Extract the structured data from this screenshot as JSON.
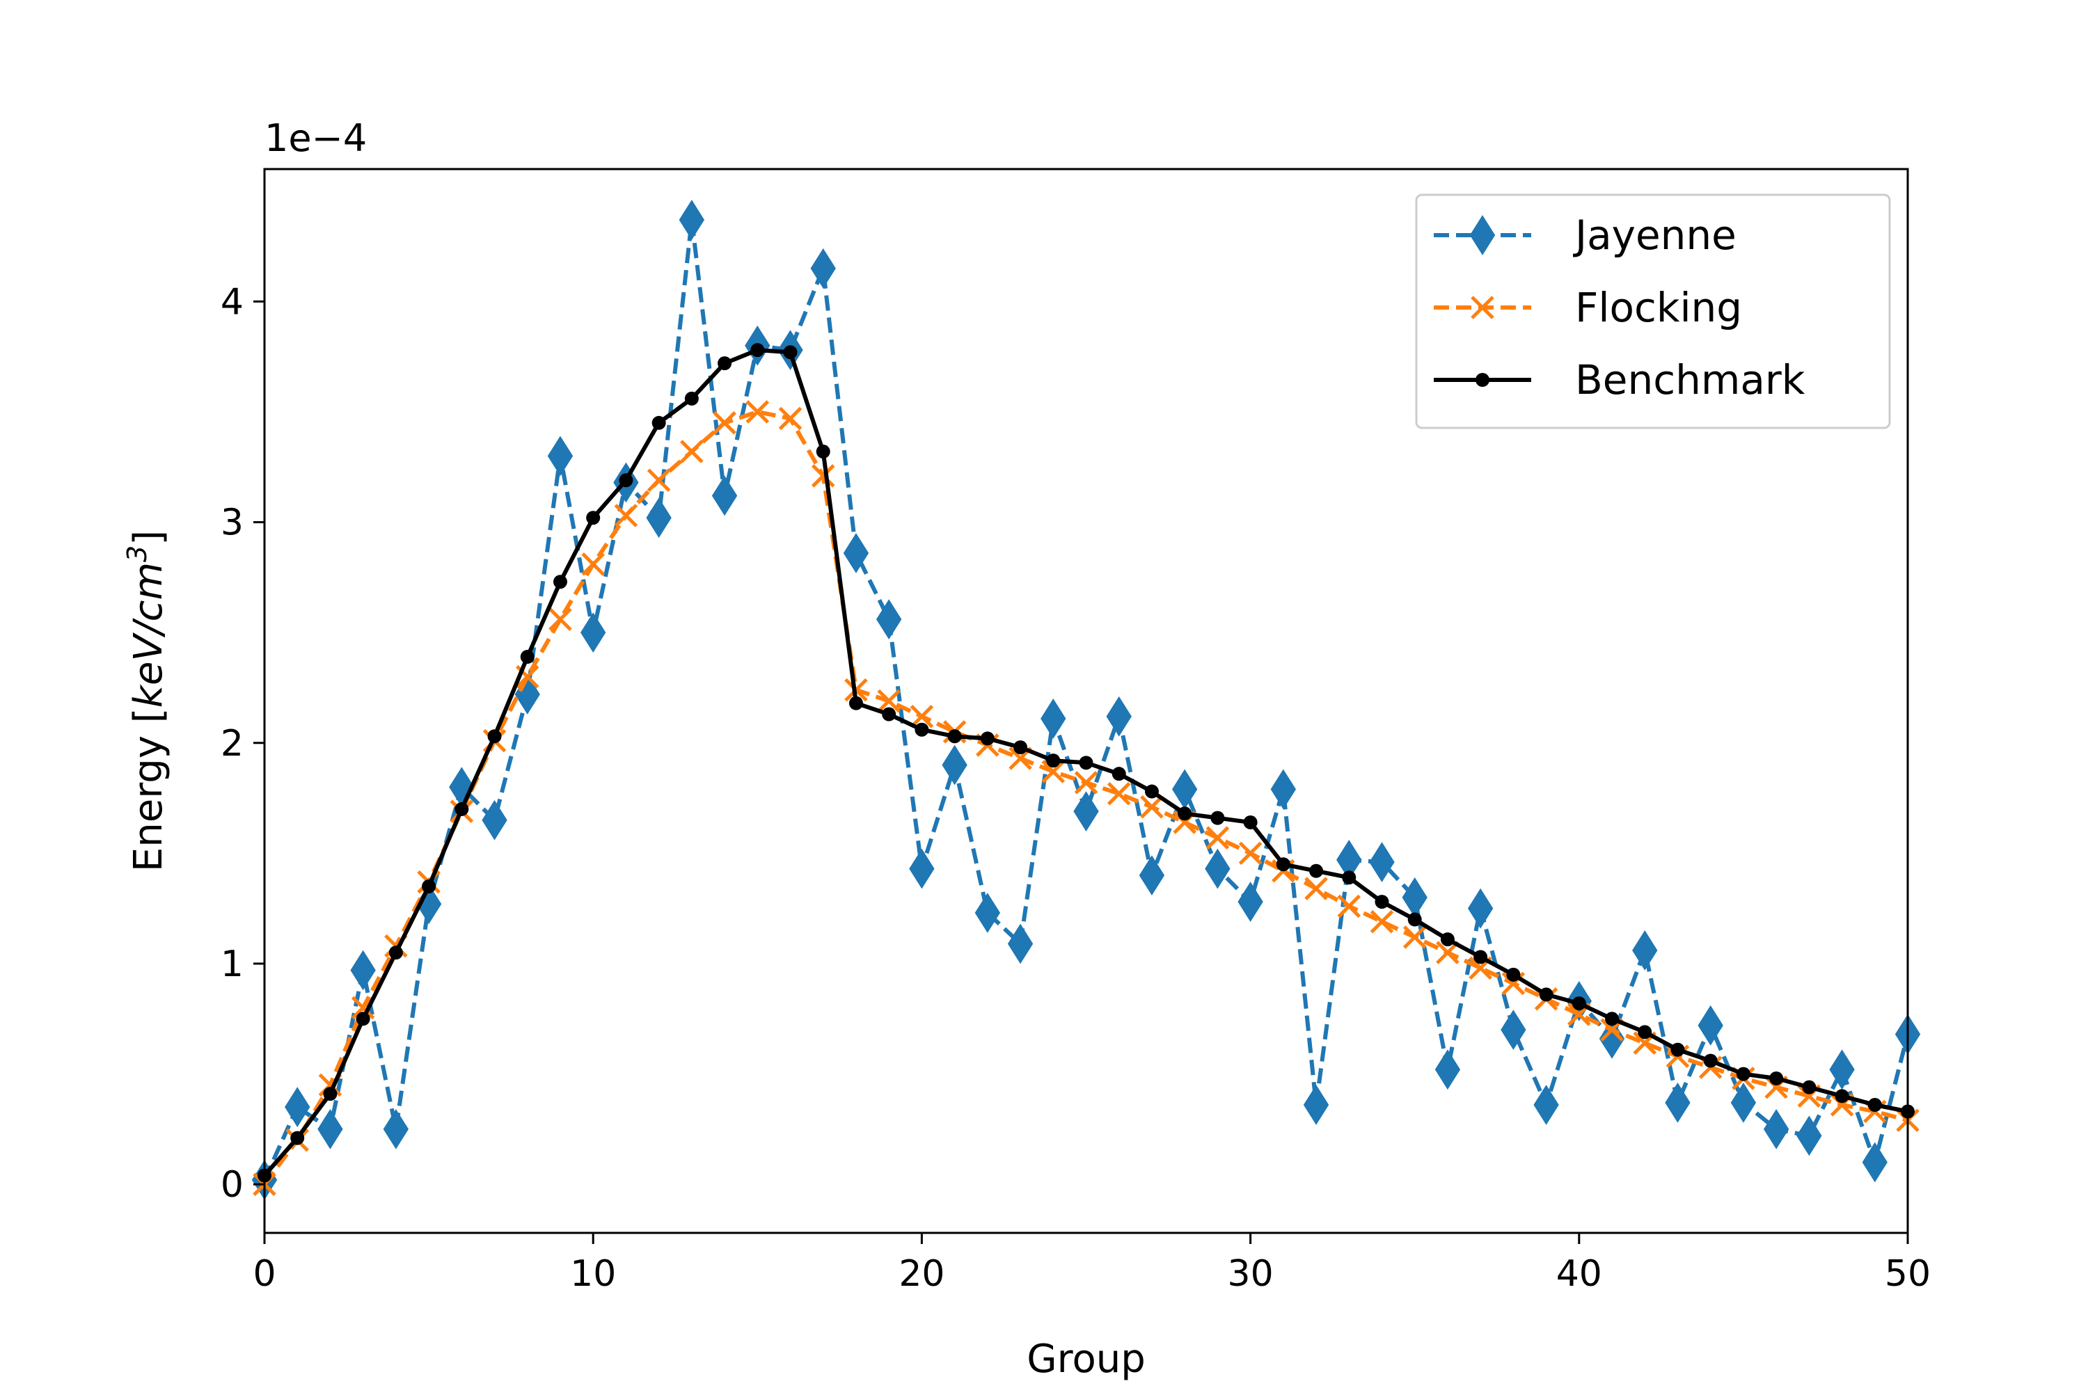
{
  "chart_data": {
    "type": "line",
    "title": "",
    "xlabel": "Group",
    "ylabel_prefix": "Energy [",
    "ylabel_math": "keV/cm",
    "ylabel_sup": "3",
    "ylabel_suffix": "]",
    "y_offset_text": "1e−4",
    "xlim": [
      0,
      50
    ],
    "ylim": [
      -0.22,
      4.6
    ],
    "x_ticks": [
      0,
      10,
      20,
      30,
      40,
      50
    ],
    "y_ticks": [
      0,
      1,
      2,
      3,
      4
    ],
    "legend_position": "top-right",
    "grid": false,
    "colors": {
      "jayenne": "#1f77b4",
      "flocking": "#ff7f0e",
      "benchmark": "#000000"
    },
    "series": [
      {
        "name": "Jayenne",
        "style": "dashed",
        "marker": "thin-diamond",
        "x": [
          0,
          1,
          2,
          3,
          4,
          5,
          6,
          7,
          8,
          9,
          10,
          11,
          12,
          13,
          14,
          15,
          16,
          17,
          18,
          19,
          20,
          21,
          22,
          23,
          24,
          25,
          26,
          27,
          28,
          29,
          30,
          31,
          32,
          33,
          34,
          35,
          36,
          37,
          38,
          39,
          40,
          41,
          42,
          43,
          44,
          45,
          46,
          47,
          48,
          49,
          50
        ],
        "values": [
          0.02,
          0.35,
          0.25,
          0.97,
          0.25,
          1.27,
          1.8,
          1.65,
          2.22,
          3.3,
          2.5,
          3.18,
          3.02,
          4.37,
          3.12,
          3.8,
          3.78,
          4.15,
          2.86,
          2.56,
          1.43,
          1.9,
          1.23,
          1.09,
          2.11,
          1.69,
          2.12,
          1.4,
          1.79,
          1.43,
          1.28,
          1.79,
          0.36,
          1.47,
          1.46,
          1.3,
          0.52,
          1.25,
          0.7,
          0.36,
          0.83,
          0.66,
          1.06,
          0.37,
          0.72,
          0.37,
          0.25,
          0.22,
          0.52,
          0.1,
          0.68
        ]
      },
      {
        "name": "Flocking",
        "style": "dashed",
        "marker": "x",
        "x": [
          0,
          1,
          2,
          3,
          4,
          5,
          6,
          7,
          8,
          9,
          10,
          11,
          12,
          13,
          14,
          15,
          16,
          17,
          18,
          19,
          20,
          21,
          22,
          23,
          24,
          25,
          26,
          27,
          28,
          29,
          30,
          31,
          32,
          33,
          34,
          35,
          36,
          37,
          38,
          39,
          40,
          41,
          42,
          43,
          44,
          45,
          46,
          47,
          48,
          49,
          50
        ],
        "values": [
          0.0,
          0.2,
          0.45,
          0.8,
          1.08,
          1.37,
          1.69,
          2.01,
          2.3,
          2.56,
          2.81,
          3.03,
          3.19,
          3.32,
          3.45,
          3.5,
          3.47,
          3.21,
          2.24,
          2.19,
          2.12,
          2.05,
          1.99,
          1.93,
          1.87,
          1.82,
          1.77,
          1.71,
          1.64,
          1.57,
          1.5,
          1.42,
          1.34,
          1.26,
          1.19,
          1.12,
          1.05,
          0.98,
          0.91,
          0.84,
          0.77,
          0.7,
          0.64,
          0.58,
          0.53,
          0.48,
          0.44,
          0.4,
          0.36,
          0.33,
          0.29
        ]
      },
      {
        "name": "Benchmark",
        "style": "solid",
        "marker": "dot",
        "x": [
          0,
          1,
          2,
          3,
          4,
          5,
          6,
          7,
          8,
          9,
          10,
          11,
          12,
          13,
          14,
          15,
          16,
          17,
          18,
          19,
          20,
          21,
          22,
          23,
          24,
          25,
          26,
          27,
          28,
          29,
          30,
          31,
          32,
          33,
          34,
          35,
          36,
          37,
          38,
          39,
          40,
          41,
          42,
          43,
          44,
          45,
          46,
          47,
          48,
          49,
          50
        ],
        "values": [
          0.04,
          0.21,
          0.41,
          0.75,
          1.05,
          1.35,
          1.7,
          2.03,
          2.39,
          2.73,
          3.02,
          3.19,
          3.45,
          3.56,
          3.72,
          3.78,
          3.77,
          3.32,
          2.18,
          2.13,
          2.06,
          2.03,
          2.02,
          1.98,
          1.92,
          1.91,
          1.86,
          1.78,
          1.68,
          1.66,
          1.64,
          1.45,
          1.42,
          1.39,
          1.28,
          1.2,
          1.11,
          1.03,
          0.95,
          0.86,
          0.82,
          0.75,
          0.69,
          0.61,
          0.56,
          0.5,
          0.48,
          0.44,
          0.4,
          0.36,
          0.33
        ]
      }
    ]
  }
}
